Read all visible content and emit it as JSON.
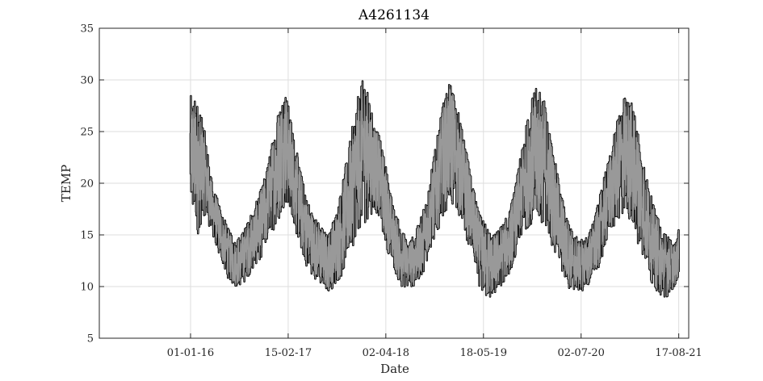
{
  "chart_data": {
    "type": "line",
    "title": "A4261134",
    "xlabel": "Date",
    "ylabel": "TEMP",
    "xlim": [
      "2014-12-13",
      "2021-09-28"
    ],
    "ylim": [
      5,
      35
    ],
    "x_ticks": [
      "2016-01-01",
      "2017-02-15",
      "2018-04-02",
      "2019-05-18",
      "2020-07-02",
      "2021-08-17"
    ],
    "x_tick_labels": [
      "01-01-16",
      "15-02-17",
      "02-04-18",
      "18-05-19",
      "02-07-20",
      "17-08-21"
    ],
    "y_ticks": [
      5,
      10,
      15,
      20,
      25,
      30,
      35
    ],
    "y_tick_labels": [
      "5",
      "10",
      "15",
      "20",
      "25",
      "30",
      "35"
    ],
    "grid": true,
    "series": [
      {
        "line_color": "#000000",
        "fill_color": "#999999",
        "x": [
          "2016-01-01",
          "2016-02-01",
          "2016-03-01",
          "2016-04-01",
          "2016-05-01",
          "2016-06-01",
          "2016-07-01",
          "2016-08-01",
          "2016-09-01",
          "2016-10-01",
          "2016-11-01",
          "2016-12-01",
          "2017-01-01",
          "2017-02-01",
          "2017-03-01",
          "2017-04-01",
          "2017-05-01",
          "2017-06-01",
          "2017-07-01",
          "2017-08-01",
          "2017-09-01",
          "2017-10-01",
          "2017-11-01",
          "2017-12-01",
          "2018-01-01",
          "2018-02-01",
          "2018-03-01",
          "2018-04-01",
          "2018-05-01",
          "2018-06-01",
          "2018-07-01",
          "2018-08-01",
          "2018-09-01",
          "2018-10-01",
          "2018-11-01",
          "2018-12-01",
          "2019-01-01",
          "2019-02-01",
          "2019-03-01",
          "2019-04-01",
          "2019-05-01",
          "2019-06-01",
          "2019-07-01",
          "2019-08-01",
          "2019-09-01",
          "2019-10-01",
          "2019-11-01",
          "2019-12-01",
          "2020-01-01",
          "2020-02-01",
          "2020-03-01",
          "2020-04-01",
          "2020-05-01",
          "2020-06-01",
          "2020-07-01",
          "2020-08-01",
          "2020-09-01",
          "2020-10-01",
          "2020-11-01",
          "2020-12-01",
          "2021-01-01",
          "2021-02-01",
          "2021-03-01",
          "2021-04-01",
          "2021-05-01",
          "2021-06-01",
          "2021-07-01",
          "2021-08-01",
          "2021-08-17"
        ],
        "y_min": [
          17,
          15,
          17,
          15,
          13,
          11,
          10,
          10,
          11,
          12,
          13,
          15,
          16,
          18,
          17,
          14,
          12,
          11,
          10,
          9.5,
          10,
          11,
          13,
          15,
          16,
          17,
          17,
          14,
          12,
          10,
          9.8,
          10,
          11,
          13,
          15,
          17,
          18,
          17,
          15,
          13,
          10,
          8.5,
          9,
          10,
          11,
          13,
          15,
          16,
          16,
          16,
          14,
          12,
          10,
          9.5,
          9.5,
          10,
          11,
          13,
          15,
          16,
          17,
          16,
          14,
          12,
          10,
          9,
          9,
          10,
          11
        ],
        "y_max": [
          28.5,
          28,
          25,
          20,
          18,
          16,
          14.5,
          15,
          16.5,
          18,
          20,
          23,
          27,
          29.5,
          26,
          22,
          19,
          17,
          16,
          15,
          17,
          20,
          24,
          28,
          30.5,
          27,
          25,
          22,
          18,
          16,
          14.5,
          15,
          17,
          20,
          24,
          28,
          30,
          27,
          24,
          20,
          17,
          16,
          15,
          16,
          17,
          20,
          24,
          28,
          29.5,
          28,
          24,
          20,
          17,
          15,
          14.5,
          15,
          17,
          20,
          23,
          26,
          28.5,
          28,
          25,
          21,
          18,
          16,
          15,
          14,
          15.5
        ]
      }
    ]
  }
}
